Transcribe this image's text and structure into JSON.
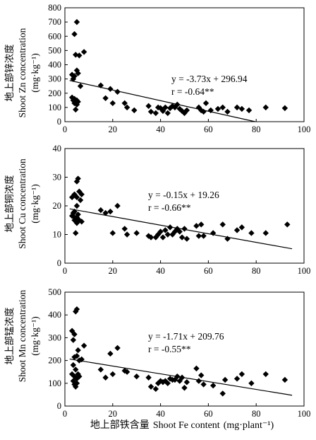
{
  "chart_data": [
    {
      "type": "scatter",
      "ylabel_zh": "地上部锌浓度",
      "ylabel_en": "Shoot Zn concentration",
      "yunit": "(mg·kg⁻¹)",
      "xlim": [
        0,
        100
      ],
      "ylim": [
        0,
        800
      ],
      "xticks": [
        "0",
        "20",
        "40",
        "60",
        "80",
        "100"
      ],
      "yticks": [
        "0",
        "100",
        "200",
        "300",
        "400",
        "500",
        "600",
        "700",
        "800"
      ],
      "equation": "y = -3.73x + 296.94",
      "r_text": "r = -0.64**",
      "fit": {
        "slope": -3.73,
        "intercept": 296.94
      },
      "points": [
        [
          3,
          330
        ],
        [
          3.5,
          300
        ],
        [
          4,
          320
        ],
        [
          4,
          615
        ],
        [
          5,
          700
        ],
        [
          4.5,
          470
        ],
        [
          5,
          360
        ],
        [
          5.5,
          340
        ],
        [
          6,
          465
        ],
        [
          8,
          490
        ],
        [
          6.5,
          250
        ],
        [
          3,
          170
        ],
        [
          3.5,
          150
        ],
        [
          4,
          160
        ],
        [
          4,
          130
        ],
        [
          4.5,
          85
        ],
        [
          5,
          120
        ],
        [
          5,
          150
        ],
        [
          5.5,
          140
        ],
        [
          3.5,
          300
        ],
        [
          15,
          255
        ],
        [
          17,
          165
        ],
        [
          19,
          230
        ],
        [
          20,
          130
        ],
        [
          22,
          210
        ],
        [
          25,
          130
        ],
        [
          26,
          100
        ],
        [
          29,
          80
        ],
        [
          35,
          110
        ],
        [
          36,
          70
        ],
        [
          38,
          60
        ],
        [
          39,
          100
        ],
        [
          40,
          95
        ],
        [
          41,
          75
        ],
        [
          42,
          100
        ],
        [
          43,
          60
        ],
        [
          44,
          95
        ],
        [
          45,
          110
        ],
        [
          46,
          100
        ],
        [
          47,
          120
        ],
        [
          48,
          90
        ],
        [
          49,
          75
        ],
        [
          50,
          60
        ],
        [
          51,
          80
        ],
        [
          56,
          100
        ],
        [
          57,
          80
        ],
        [
          58,
          70
        ],
        [
          59,
          130
        ],
        [
          61,
          80
        ],
        [
          64,
          90
        ],
        [
          66,
          100
        ],
        [
          68,
          70
        ],
        [
          72,
          100
        ],
        [
          74,
          90
        ],
        [
          77,
          80
        ],
        [
          84,
          100
        ],
        [
          92,
          95
        ]
      ]
    },
    {
      "type": "scatter",
      "ylabel_zh": "地上部铜浓度",
      "ylabel_en": "Shoot Cu concentration",
      "yunit": "(mg·kg⁻¹)",
      "xlim": [
        0,
        100
      ],
      "ylim": [
        0,
        40
      ],
      "xticks": [
        "0",
        "20",
        "40",
        "60",
        "80",
        "100"
      ],
      "yticks": [
        "0",
        "10",
        "20",
        "30",
        "40"
      ],
      "equation": "y = -0.15x + 19.26",
      "r_text": "r = -0.66**",
      "fit": {
        "slope": -0.15,
        "intercept": 19.26
      },
      "points": [
        [
          3,
          23
        ],
        [
          4,
          24
        ],
        [
          5,
          28.5
        ],
        [
          5.5,
          29.5
        ],
        [
          5,
          23
        ],
        [
          6,
          25
        ],
        [
          7,
          24
        ],
        [
          6.5,
          22
        ],
        [
          5,
          20
        ],
        [
          3.5,
          17.5
        ],
        [
          4,
          16
        ],
        [
          4,
          15
        ],
        [
          4.5,
          10.5
        ],
        [
          5,
          14
        ],
        [
          5.5,
          17
        ],
        [
          6,
          15
        ],
        [
          7,
          14.5
        ],
        [
          4,
          18
        ],
        [
          3,
          16.5
        ],
        [
          5,
          16
        ],
        [
          15,
          18.5
        ],
        [
          17,
          17.5
        ],
        [
          19,
          18
        ],
        [
          20,
          10.5
        ],
        [
          22,
          20
        ],
        [
          25,
          12
        ],
        [
          26,
          10
        ],
        [
          30,
          10.5
        ],
        [
          35,
          9.5
        ],
        [
          36,
          9
        ],
        [
          38,
          9
        ],
        [
          39,
          10
        ],
        [
          40,
          11
        ],
        [
          41,
          9
        ],
        [
          42,
          11.5
        ],
        [
          43,
          10
        ],
        [
          44,
          12.5
        ],
        [
          45,
          10
        ],
        [
          46,
          11
        ],
        [
          47,
          12
        ],
        [
          48,
          11
        ],
        [
          49,
          9
        ],
        [
          50,
          12
        ],
        [
          51,
          8.5
        ],
        [
          55,
          13
        ],
        [
          56,
          9.5
        ],
        [
          57,
          13.5
        ],
        [
          58,
          9.5
        ],
        [
          62,
          10.5
        ],
        [
          66,
          13.5
        ],
        [
          68,
          8.5
        ],
        [
          72,
          11.5
        ],
        [
          74,
          12.5
        ],
        [
          78,
          10.5
        ],
        [
          84,
          10.5
        ],
        [
          93,
          13.5
        ]
      ]
    },
    {
      "type": "scatter",
      "ylabel_zh": "地上部锰浓度",
      "ylabel_en": "Shoot Mn concentration",
      "yunit": "(mg·kg⁻¹)",
      "xlim": [
        0,
        100
      ],
      "ylim": [
        0,
        500
      ],
      "xticks": [
        "0",
        "20",
        "40",
        "60",
        "80",
        "100"
      ],
      "yticks": [
        "0",
        "100",
        "200",
        "300",
        "400",
        "500"
      ],
      "xlabel_zh": "地上部铁含量",
      "xlabel_en": "Shoot Fe content",
      "xunit": "(mg·plant⁻¹)",
      "equation": "y = -1.71x + 209.76",
      "r_text": "r = -0.55**",
      "fit": {
        "slope": -1.71,
        "intercept": 209.76
      },
      "points": [
        [
          3,
          330
        ],
        [
          3.5,
          290
        ],
        [
          4,
          315
        ],
        [
          4.5,
          415
        ],
        [
          5,
          425
        ],
        [
          5.5,
          245
        ],
        [
          6,
          200
        ],
        [
          7,
          205
        ],
        [
          8,
          265
        ],
        [
          4,
          215
        ],
        [
          5,
          220
        ],
        [
          3,
          140
        ],
        [
          3.5,
          110
        ],
        [
          4,
          130
        ],
        [
          4,
          95
        ],
        [
          4.5,
          85
        ],
        [
          5,
          100
        ],
        [
          5.5,
          140
        ],
        [
          6,
          130
        ],
        [
          4.5,
          160
        ],
        [
          3.5,
          180
        ],
        [
          5,
          120
        ],
        [
          15,
          160
        ],
        [
          17,
          125
        ],
        [
          19,
          230
        ],
        [
          20,
          140
        ],
        [
          22,
          255
        ],
        [
          25,
          155
        ],
        [
          26,
          150
        ],
        [
          30,
          130
        ],
        [
          35,
          125
        ],
        [
          36,
          85
        ],
        [
          38,
          75
        ],
        [
          39,
          100
        ],
        [
          40,
          110
        ],
        [
          41,
          105
        ],
        [
          42,
          110
        ],
        [
          43,
          100
        ],
        [
          44,
          120
        ],
        [
          45,
          115
        ],
        [
          46,
          115
        ],
        [
          47,
          130
        ],
        [
          48,
          110
        ],
        [
          49,
          125
        ],
        [
          50,
          80
        ],
        [
          51,
          105
        ],
        [
          55,
          165
        ],
        [
          56,
          110
        ],
        [
          57,
          135
        ],
        [
          58,
          95
        ],
        [
          62,
          90
        ],
        [
          66,
          55
        ],
        [
          67,
          115
        ],
        [
          72,
          120
        ],
        [
          74,
          140
        ],
        [
          78,
          100
        ],
        [
          84,
          140
        ],
        [
          92,
          115
        ]
      ]
    }
  ]
}
